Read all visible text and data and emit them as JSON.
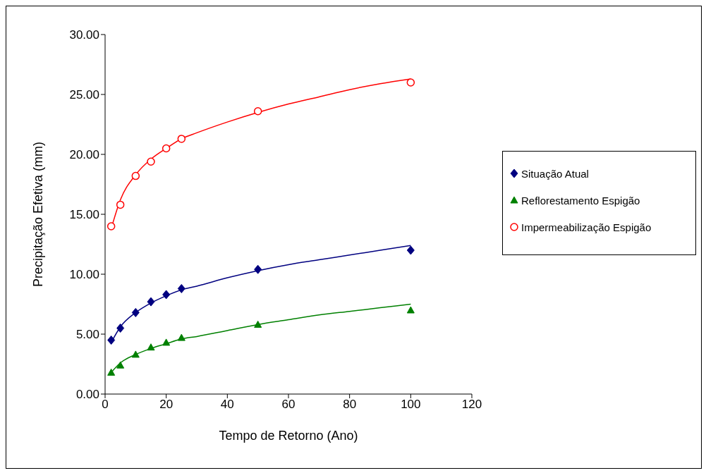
{
  "chart_data": {
    "type": "scatter",
    "xlabel": "Tempo de Retorno (Ano)",
    "ylabel": "Precipitação Efetiva (mm)",
    "xlim": [
      0,
      120
    ],
    "xticks": [
      0,
      20,
      40,
      60,
      80,
      100,
      120
    ],
    "ylim": [
      0,
      30
    ],
    "yticks": [
      {
        "value": 0,
        "label": "0.00"
      },
      {
        "value": 5,
        "label": "5.00"
      },
      {
        "value": 10,
        "label": "10.00"
      },
      {
        "value": 15,
        "label": "15.00"
      },
      {
        "value": 20,
        "label": "20.00"
      },
      {
        "value": 25,
        "label": "25.00"
      },
      {
        "value": 30,
        "label": "30.00"
      }
    ],
    "grid": false,
    "legend": "right",
    "series": [
      {
        "name": "Situação Atual",
        "marker": "diamond",
        "color": "#000080",
        "x": [
          2,
          5,
          10,
          15,
          20,
          25,
          50,
          100
        ],
        "values": [
          4.5,
          5.5,
          6.8,
          7.7,
          8.3,
          8.8,
          10.4,
          12.0
        ]
      },
      {
        "name": "Reflorestamento Espigão",
        "marker": "triangle",
        "color": "#008000",
        "x": [
          2,
          5,
          10,
          15,
          20,
          25,
          50,
          100
        ],
        "values": [
          1.8,
          2.4,
          3.3,
          3.9,
          4.3,
          4.7,
          5.8,
          7.0
        ]
      },
      {
        "name": "Impermeabilização Espigão",
        "marker": "circle",
        "color": "#ff0000",
        "x": [
          2,
          5,
          10,
          15,
          20,
          25,
          50,
          100
        ],
        "values": [
          14.0,
          15.8,
          18.2,
          19.4,
          20.5,
          21.3,
          23.6,
          26.0
        ]
      },
      {
        "type": "line",
        "marker": "none",
        "color": "#000080",
        "x": [
          2,
          5,
          10,
          15,
          20,
          25,
          30,
          40,
          50,
          60,
          70,
          80,
          90,
          100
        ],
        "values": [
          4.3,
          5.6,
          6.8,
          7.6,
          8.2,
          8.7,
          9.0,
          9.7,
          10.3,
          10.8,
          11.2,
          11.6,
          12.0,
          12.4
        ]
      },
      {
        "type": "line",
        "marker": "none",
        "color": "#008000",
        "x": [
          2,
          5,
          10,
          15,
          20,
          25,
          30,
          40,
          50,
          60,
          70,
          80,
          90,
          100
        ],
        "values": [
          1.8,
          2.6,
          3.3,
          3.8,
          4.2,
          4.6,
          4.8,
          5.3,
          5.8,
          6.2,
          6.6,
          6.9,
          7.2,
          7.5
        ]
      },
      {
        "type": "line",
        "marker": "none",
        "color": "#ff0000",
        "x": [
          2,
          5,
          10,
          15,
          20,
          25,
          30,
          40,
          50,
          60,
          70,
          80,
          90,
          100
        ],
        "values": [
          13.8,
          16.2,
          18.3,
          19.6,
          20.5,
          21.3,
          21.8,
          22.7,
          23.5,
          24.2,
          24.8,
          25.4,
          25.9,
          26.3
        ]
      }
    ]
  }
}
